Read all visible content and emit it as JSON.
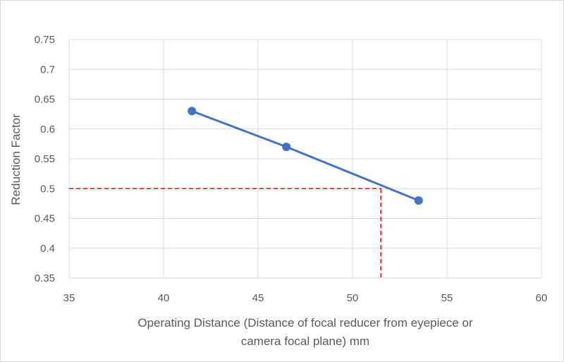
{
  "chart_data": {
    "type": "scatter",
    "title": "",
    "xlabel_lines": [
      "Operating Distance (Distance of focal reducer from eyepiece or",
      "camera focal plane) mm"
    ],
    "ylabel": "Reduction Factor",
    "xlim": [
      35,
      60
    ],
    "ylim": [
      0.35,
      0.75
    ],
    "xticks": [
      "35",
      "40",
      "45",
      "50",
      "55",
      "60"
    ],
    "yticks": [
      "0.35",
      "0.4",
      "0.45",
      "0.5",
      "0.55",
      "0.6",
      "0.65",
      "0.7",
      "0.75"
    ],
    "grid": true,
    "legend": "none",
    "series": [
      {
        "color": "#4472c4",
        "marker": "circle",
        "line": "solid",
        "x": [
          41.5,
          46.5,
          53.5
        ],
        "y": [
          0.63,
          0.57,
          0.48
        ]
      }
    ],
    "reference_lines": {
      "color": "#ff0000",
      "style": "dashed",
      "y_value": 0.5,
      "x_value": 51.5
    }
  }
}
